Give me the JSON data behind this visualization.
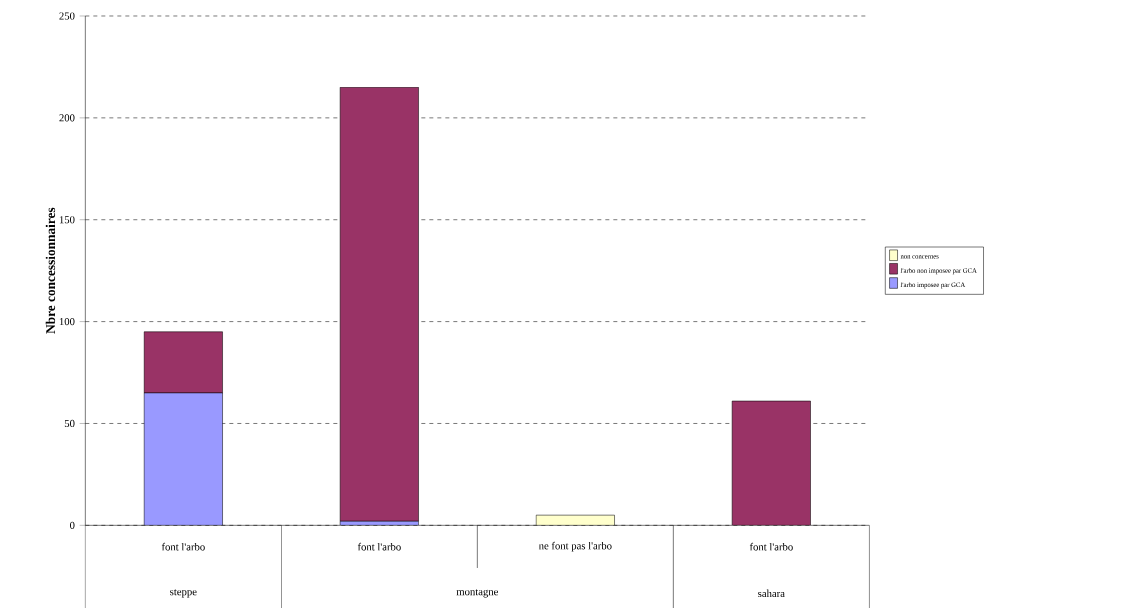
{
  "chart_data": {
    "type": "bar",
    "stacked": true,
    "ylabel": "Nbre concessionnaires",
    "categories": [
      "font l'arbo",
      "font l'arbo",
      "ne font pas l'arbo",
      "font l'arbo"
    ],
    "series": [
      {
        "name": "l'arbo imposee par GCA",
        "color": "#9999ff",
        "values": [
          65,
          2,
          null,
          null
        ]
      },
      {
        "name": "l'arbo non imposee par GCA",
        "color": "#993366",
        "values": [
          30,
          213,
          null,
          61
        ]
      },
      {
        "name": "non concernes",
        "color": "#ffffcc",
        "values": [
          null,
          null,
          5,
          null
        ]
      }
    ],
    "annotations": [
      "steppe",
      "montagne",
      "sahara"
    ],
    "ylim": [
      0,
      250
    ],
    "yticks": [
      0,
      50,
      100,
      150,
      200,
      250
    ],
    "grid": "y",
    "legend": "right"
  }
}
